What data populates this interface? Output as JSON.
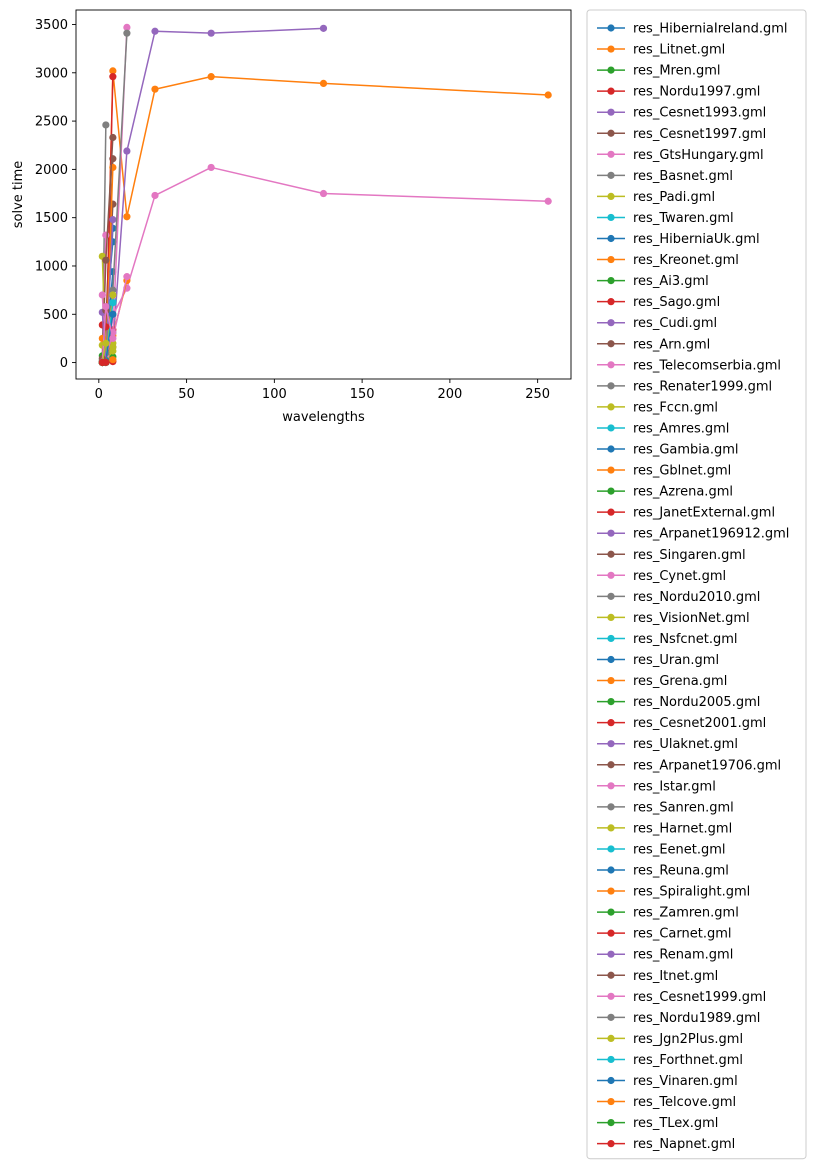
{
  "chart_data": {
    "type": "line",
    "title": "",
    "xlabel": "wavelengths",
    "ylabel": "solve time",
    "xlim": [
      -13,
      269
    ],
    "ylim": [
      -170,
      3650
    ],
    "xticks": [
      0,
      50,
      100,
      150,
      200,
      250
    ],
    "yticks": [
      0,
      500,
      1000,
      1500,
      2000,
      2500,
      3000,
      3500
    ],
    "legend_placement": "outside-right",
    "grid": false,
    "markers": true,
    "palette": [
      "#1f77b4",
      "#ff7f0e",
      "#2ca02c",
      "#d62728",
      "#9467bd",
      "#8c564b",
      "#e377c2",
      "#7f7f7f",
      "#bcbd22",
      "#17becf"
    ],
    "series": [
      {
        "name": "res_HiberniaIreland.gml",
        "x": [
          2,
          4,
          8
        ],
        "y": [
          2,
          470,
          1250
        ]
      },
      {
        "name": "res_Litnet.gml",
        "x": [
          2,
          4,
          8,
          16,
          32,
          64,
          128,
          256
        ],
        "y": [
          2,
          30,
          3020,
          1510,
          2830,
          2960,
          2890,
          2770
        ]
      },
      {
        "name": "res_Mren.gml",
        "x": [
          2,
          4,
          8
        ],
        "y": [
          1,
          10,
          60
        ]
      },
      {
        "name": "res_Nordu1997.gml",
        "x": [
          2,
          4,
          8
        ],
        "y": [
          1,
          2,
          10
        ]
      },
      {
        "name": "res_Cesnet1993.gml",
        "x": [
          2,
          4,
          8,
          16,
          32,
          64,
          128
        ],
        "y": [
          2,
          50,
          160,
          2190,
          3430,
          3410,
          3460
        ]
      },
      {
        "name": "res_Cesnet1997.gml",
        "x": [
          2,
          4,
          8
        ],
        "y": [
          2,
          400,
          2110
        ]
      },
      {
        "name": "res_GtsHungary.gml",
        "x": [
          2,
          4,
          8,
          16,
          32,
          64,
          128,
          256
        ],
        "y": [
          2,
          120,
          490,
          770,
          1730,
          2020,
          1750,
          1670
        ]
      },
      {
        "name": "res_Basnet.gml",
        "x": [
          2,
          4
        ],
        "y": [
          10,
          2460
        ]
      },
      {
        "name": "res_Padi.gml",
        "x": [
          2,
          4,
          8
        ],
        "y": [
          1,
          30,
          120
        ]
      },
      {
        "name": "res_Twaren.gml",
        "x": [
          2,
          4,
          8
        ],
        "y": [
          1,
          30,
          310
        ]
      },
      {
        "name": "res_HiberniaUk.gml",
        "x": [
          2,
          4,
          8
        ],
        "y": [
          1,
          130,
          1390
        ]
      },
      {
        "name": "res_Kreonet.gml",
        "x": [
          2,
          4,
          8,
          16
        ],
        "y": [
          1,
          60,
          280,
          850
        ]
      },
      {
        "name": "res_Ai3.gml",
        "x": [
          2,
          4
        ],
        "y": [
          1,
          1
        ]
      },
      {
        "name": "res_Sago.gml",
        "x": [
          2,
          4,
          8
        ],
        "y": [
          2,
          80,
          2960
        ]
      },
      {
        "name": "res_Cudi.gml",
        "x": [
          2,
          4
        ],
        "y": [
          1,
          2
        ]
      },
      {
        "name": "res_Arn.gml",
        "x": [
          2,
          4,
          8
        ],
        "y": [
          5,
          300,
          1640
        ]
      },
      {
        "name": "res_Telecomserbia.gml",
        "x": [
          2,
          4
        ],
        "y": [
          2,
          1320
        ]
      },
      {
        "name": "res_Renater1999.gml",
        "x": [
          2,
          4
        ],
        "y": [
          2,
          220
        ]
      },
      {
        "name": "res_Fccn.gml",
        "x": [
          2,
          4,
          8
        ],
        "y": [
          1100,
          40,
          160
        ]
      },
      {
        "name": "res_Amres.gml",
        "x": [
          2,
          4,
          8
        ],
        "y": [
          1,
          60,
          640
        ]
      },
      {
        "name": "res_Gambia.gml",
        "x": [
          2,
          4
        ],
        "y": [
          1,
          2
        ]
      },
      {
        "name": "res_Gblnet.gml",
        "x": [
          2,
          4,
          8
        ],
        "y": [
          1,
          20,
          2020
        ]
      },
      {
        "name": "res_Azrena.gml",
        "x": [
          2,
          4
        ],
        "y": [
          1,
          5
        ]
      },
      {
        "name": "res_JanetExternal.gml",
        "x": [
          2,
          4
        ],
        "y": [
          1,
          1
        ]
      },
      {
        "name": "res_Arpanet196912.gml",
        "x": [
          2,
          4
        ],
        "y": [
          1,
          1
        ]
      },
      {
        "name": "res_Singaren.gml",
        "x": [
          2,
          4
        ],
        "y": [
          1,
          2
        ]
      },
      {
        "name": "res_Cynet.gml",
        "x": [
          2,
          4
        ],
        "y": [
          1,
          2
        ]
      },
      {
        "name": "res_Nordu2010.gml",
        "x": [
          2,
          4
        ],
        "y": [
          1,
          5
        ]
      },
      {
        "name": "res_VisionNet.gml",
        "x": [
          2,
          4,
          8
        ],
        "y": [
          1,
          20,
          200
        ]
      },
      {
        "name": "res_Nsfcnet.gml",
        "x": [
          2,
          4
        ],
        "y": [
          1,
          2
        ]
      },
      {
        "name": "res_Uran.gml",
        "x": [
          2,
          4,
          8
        ],
        "y": [
          1,
          40,
          940
        ]
      },
      {
        "name": "res_Grena.gml",
        "x": [
          2,
          4
        ],
        "y": [
          1,
          2
        ]
      },
      {
        "name": "res_Nordu2005.gml",
        "x": [
          2,
          4
        ],
        "y": [
          1,
          2
        ]
      },
      {
        "name": "res_Cesnet2001.gml",
        "x": [
          2,
          4,
          8
        ],
        "y": [
          2,
          30,
          340
        ]
      },
      {
        "name": "res_Ulaknet.gml",
        "x": [
          2,
          4,
          8
        ],
        "y": [
          2,
          30,
          1480
        ]
      },
      {
        "name": "res_Arpanet19706.gml",
        "x": [
          2,
          4,
          8
        ],
        "y": [
          2,
          1060,
          2330
        ]
      },
      {
        "name": "res_Istar.gml",
        "x": [
          2,
          4,
          8,
          16
        ],
        "y": [
          700,
          60,
          310,
          3470
        ]
      },
      {
        "name": "res_Sanren.gml",
        "x": [
          2,
          4,
          8,
          16
        ],
        "y": [
          20,
          100,
          750,
          3410
        ]
      },
      {
        "name": "res_Harnet.gml",
        "x": [
          2,
          4,
          8
        ],
        "y": [
          180,
          30,
          700
        ]
      },
      {
        "name": "res_Eenet.gml",
        "x": [
          2,
          4,
          8
        ],
        "y": [
          1,
          10,
          620
        ]
      },
      {
        "name": "res_Reuna.gml",
        "x": [
          2,
          4,
          8
        ],
        "y": [
          1,
          20,
          500
        ]
      },
      {
        "name": "res_Spiralight.gml",
        "x": [
          2,
          4,
          8
        ],
        "y": [
          250,
          2,
          30
        ]
      },
      {
        "name": "res_Zamren.gml",
        "x": [
          2,
          4
        ],
        "y": [
          70,
          1
        ]
      },
      {
        "name": "res_Carnet.gml",
        "x": [
          2,
          4
        ],
        "y": [
          390,
          370
        ]
      },
      {
        "name": "res_Renam.gml",
        "x": [
          2,
          4
        ],
        "y": [
          520,
          1
        ]
      },
      {
        "name": "res_Itnet.gml",
        "x": [
          2,
          4
        ],
        "y": [
          40,
          540
        ]
      },
      {
        "name": "res_Cesnet1999.gml",
        "x": [
          2,
          4,
          8,
          16
        ],
        "y": [
          5,
          580,
          250,
          890
        ]
      },
      {
        "name": "res_Nordu1989.gml",
        "x": [
          2,
          4
        ],
        "y": [
          1,
          2
        ]
      },
      {
        "name": "res_Jgn2Plus.gml",
        "x": [
          2,
          4
        ],
        "y": [
          1,
          200
        ]
      },
      {
        "name": "res_Forthnet.gml",
        "x": [
          2,
          4
        ],
        "y": [
          1,
          2
        ]
      },
      {
        "name": "res_Vinaren.gml",
        "x": [
          2,
          4
        ],
        "y": [
          1,
          2
        ]
      },
      {
        "name": "res_Telcove.gml",
        "x": [
          2,
          4
        ],
        "y": [
          1,
          2
        ]
      },
      {
        "name": "res_TLex.gml",
        "x": [
          2,
          4
        ],
        "y": [
          1,
          2
        ]
      },
      {
        "name": "res_Napnet.gml",
        "x": [
          2,
          4
        ],
        "y": [
          1,
          2
        ]
      }
    ]
  }
}
